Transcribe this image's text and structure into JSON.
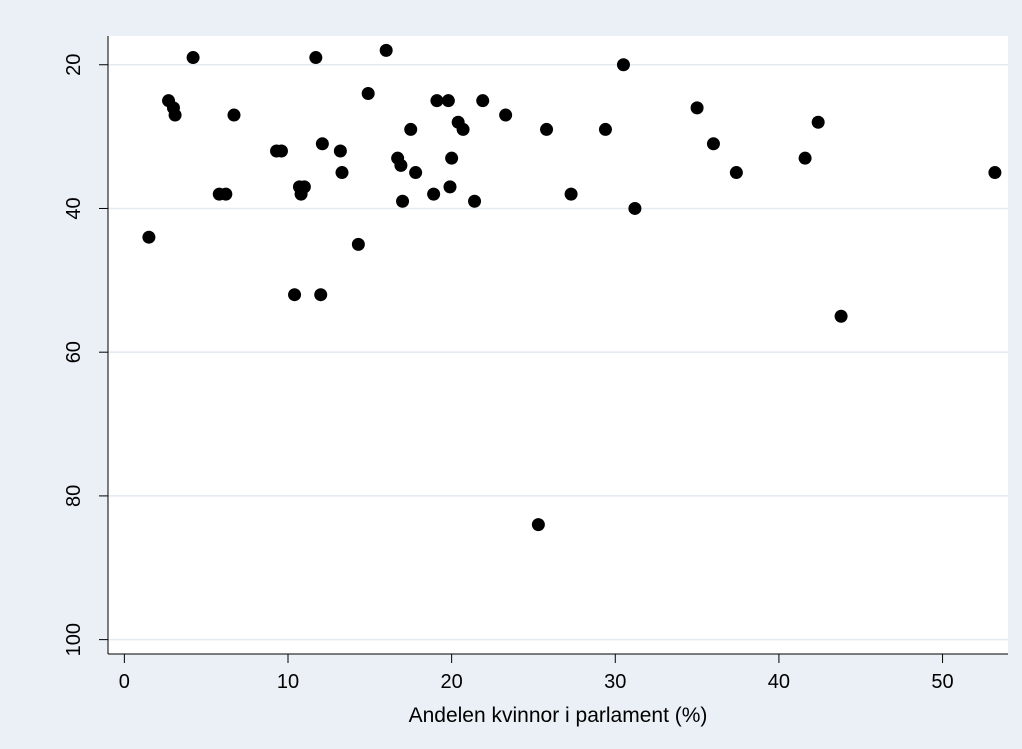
{
  "chart_data": {
    "type": "scatter",
    "title": "",
    "xlabel": "Andelen kvinnor i parlament (%)",
    "ylabel": "",
    "xlim": [
      -1,
      54
    ],
    "ylim": [
      16,
      102
    ],
    "y_reversed": true,
    "grid": "horizontal",
    "colors": {
      "background": "#eaf0f6",
      "plot": "#ffffff",
      "grid": "#e3eaf0",
      "point": "#000000"
    },
    "xticks": [
      0,
      10,
      20,
      30,
      40,
      50
    ],
    "yticks": [
      20,
      40,
      60,
      80,
      100
    ],
    "xtick_labels": [
      "0",
      "10",
      "20",
      "30",
      "40",
      "50"
    ],
    "ytick_labels": [
      "20",
      "40",
      "60",
      "80",
      "100"
    ],
    "points": [
      {
        "x": 1.5,
        "y": 44
      },
      {
        "x": 2.7,
        "y": 25
      },
      {
        "x": 3.0,
        "y": 26
      },
      {
        "x": 3.1,
        "y": 27
      },
      {
        "x": 4.2,
        "y": 19
      },
      {
        "x": 5.8,
        "y": 38
      },
      {
        "x": 6.2,
        "y": 38
      },
      {
        "x": 6.7,
        "y": 27
      },
      {
        "x": 9.3,
        "y": 32
      },
      {
        "x": 9.6,
        "y": 32
      },
      {
        "x": 10.4,
        "y": 52
      },
      {
        "x": 10.7,
        "y": 37
      },
      {
        "x": 10.8,
        "y": 38
      },
      {
        "x": 11.0,
        "y": 37
      },
      {
        "x": 11.7,
        "y": 19
      },
      {
        "x": 12.0,
        "y": 52
      },
      {
        "x": 12.1,
        "y": 31
      },
      {
        "x": 13.2,
        "y": 32
      },
      {
        "x": 13.3,
        "y": 35
      },
      {
        "x": 14.3,
        "y": 45
      },
      {
        "x": 14.9,
        "y": 24
      },
      {
        "x": 16.0,
        "y": 18
      },
      {
        "x": 16.7,
        "y": 33
      },
      {
        "x": 16.9,
        "y": 34
      },
      {
        "x": 17.0,
        "y": 39
      },
      {
        "x": 17.5,
        "y": 29
      },
      {
        "x": 17.8,
        "y": 35
      },
      {
        "x": 18.9,
        "y": 38
      },
      {
        "x": 19.1,
        "y": 25
      },
      {
        "x": 19.8,
        "y": 25
      },
      {
        "x": 19.9,
        "y": 37
      },
      {
        "x": 20.0,
        "y": 33
      },
      {
        "x": 20.4,
        "y": 28
      },
      {
        "x": 20.7,
        "y": 29
      },
      {
        "x": 21.4,
        "y": 39
      },
      {
        "x": 21.9,
        "y": 25
      },
      {
        "x": 23.3,
        "y": 27
      },
      {
        "x": 25.3,
        "y": 84
      },
      {
        "x": 25.8,
        "y": 29
      },
      {
        "x": 27.3,
        "y": 38
      },
      {
        "x": 29.4,
        "y": 29
      },
      {
        "x": 30.5,
        "y": 20
      },
      {
        "x": 31.2,
        "y": 40
      },
      {
        "x": 35.0,
        "y": 26
      },
      {
        "x": 36.0,
        "y": 31
      },
      {
        "x": 37.4,
        "y": 35
      },
      {
        "x": 41.6,
        "y": 33
      },
      {
        "x": 42.4,
        "y": 28
      },
      {
        "x": 43.8,
        "y": 55
      },
      {
        "x": 53.2,
        "y": 35
      }
    ]
  }
}
